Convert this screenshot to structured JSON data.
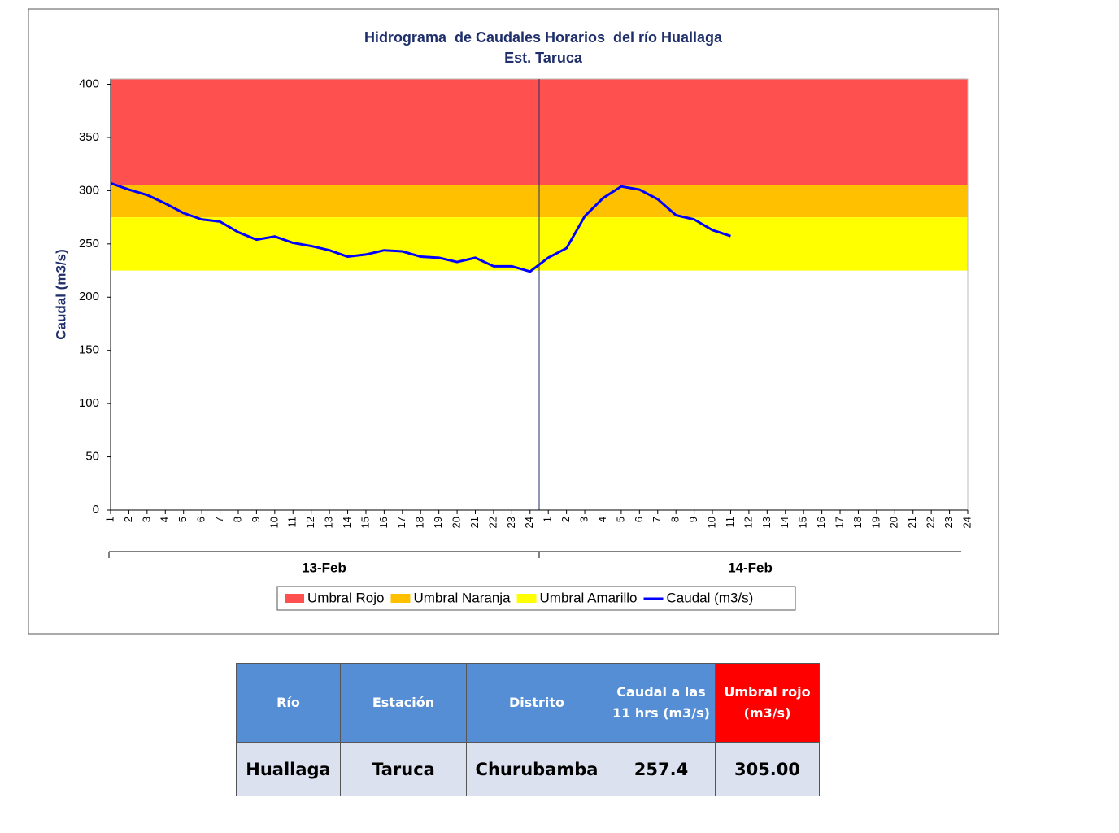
{
  "chart_data": {
    "type": "line",
    "title": "Hidrograma  de Caudales Horarios  del río Huallaga",
    "subtitle": "Est. Taruca",
    "y_label": "Caudal (m3/s)",
    "categories": [
      "1",
      "2",
      "3",
      "4",
      "5",
      "6",
      "7",
      "8",
      "9",
      "10",
      "11",
      "12",
      "13",
      "14",
      "15",
      "16",
      "17",
      "18",
      "19",
      "20",
      "21",
      "22",
      "23",
      "24",
      "1",
      "2",
      "3",
      "4",
      "5",
      "6",
      "7",
      "8",
      "9",
      "10",
      "11",
      "12",
      "13",
      "14",
      "15",
      "16",
      "17",
      "18",
      "19",
      "20",
      "21",
      "22",
      "23",
      "24"
    ],
    "x_groups": [
      "13-Feb",
      "14-Feb"
    ],
    "bands": [
      {
        "name": "Umbral Rojo",
        "color": "#ff5050",
        "from": 305,
        "to": 405
      },
      {
        "name": "Umbral Naranja",
        "color": "#ffc000",
        "from": 275,
        "to": 305
      },
      {
        "name": "Umbral Amarillo",
        "color": "#ffff00",
        "from": 225,
        "to": 275
      }
    ],
    "series": [
      {
        "name": "Caudal (m3/s)",
        "color": "#0000ff",
        "values": [
          307,
          301,
          296,
          288,
          279,
          273,
          271,
          261,
          254,
          257,
          251,
          248,
          244,
          238,
          240,
          244,
          243,
          238,
          237,
          233,
          237,
          229,
          229,
          224,
          237,
          246,
          276,
          293,
          304,
          301,
          292,
          277,
          273,
          263,
          257.4,
          null,
          null,
          null,
          null,
          null,
          null,
          null,
          null,
          null,
          null,
          null,
          null,
          null
        ]
      }
    ],
    "ylim": [
      0,
      405
    ],
    "yticks": [
      0,
      50,
      100,
      150,
      200,
      250,
      300,
      350,
      400
    ],
    "grid": false
  },
  "table": {
    "headers": [
      "Río",
      "Estación",
      "Distrito",
      "Caudal a las 11 hrs (m3/s)",
      "Umbral rojo (m3/s)"
    ],
    "rows": [
      [
        "Huallaga",
        "Taruca",
        "Churubamba",
        "257.4",
        "305.00"
      ]
    ]
  }
}
